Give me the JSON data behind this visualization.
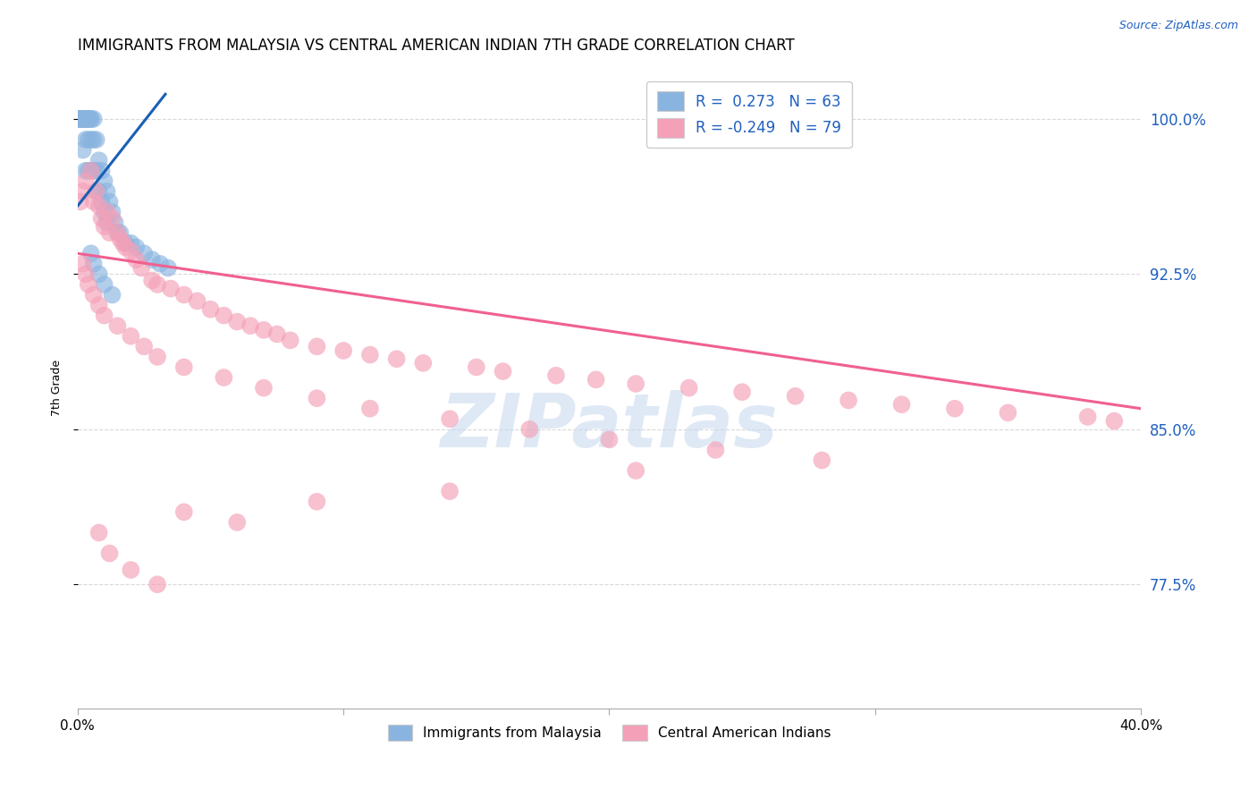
{
  "title": "IMMIGRANTS FROM MALAYSIA VS CENTRAL AMERICAN INDIAN 7TH GRADE CORRELATION CHART",
  "source": "Source: ZipAtlas.com",
  "ylabel": "7th Grade",
  "ytick_labels": [
    "100.0%",
    "92.5%",
    "85.0%",
    "77.5%"
  ],
  "ytick_values": [
    1.0,
    0.925,
    0.85,
    0.775
  ],
  "xlim": [
    0.0,
    0.4
  ],
  "ylim": [
    0.715,
    1.025
  ],
  "color_blue": "#8ab4e0",
  "color_pink": "#f4a0b8",
  "line_blue": "#1a5fb4",
  "line_pink": "#f06090",
  "background_color": "#ffffff",
  "watermark_text": "ZIPatlas",
  "grid_color": "#d8d8d8",
  "ytick_right_color": "#2060c0",
  "title_fontsize": 12,
  "axis_label_fontsize": 9,
  "legend_r1": "R =  0.273   N = 63",
  "legend_r2": "R = -0.249   N = 79",
  "blue_line_x": [
    0.0,
    0.033
  ],
  "blue_line_y": [
    0.958,
    1.012
  ],
  "pink_line_x": [
    0.0,
    0.4
  ],
  "pink_line_y": [
    0.935,
    0.86
  ],
  "blue_x": [
    0.001,
    0.001,
    0.001,
    0.001,
    0.001,
    0.001,
    0.001,
    0.002,
    0.002,
    0.002,
    0.002,
    0.002,
    0.002,
    0.002,
    0.002,
    0.002,
    0.003,
    0.003,
    0.003,
    0.003,
    0.003,
    0.003,
    0.003,
    0.004,
    0.004,
    0.004,
    0.004,
    0.004,
    0.005,
    0.005,
    0.005,
    0.005,
    0.006,
    0.006,
    0.006,
    0.007,
    0.007,
    0.007,
    0.008,
    0.008,
    0.009,
    0.009,
    0.01,
    0.01,
    0.011,
    0.011,
    0.012,
    0.013,
    0.014,
    0.015,
    0.016,
    0.018,
    0.02,
    0.022,
    0.025,
    0.028,
    0.031,
    0.034,
    0.005,
    0.006,
    0.008,
    0.01,
    0.013
  ],
  "blue_y": [
    1.0,
    1.0,
    1.0,
    1.0,
    1.0,
    1.0,
    1.0,
    1.0,
    1.0,
    1.0,
    1.0,
    1.0,
    1.0,
    1.0,
    1.0,
    0.985,
    1.0,
    1.0,
    1.0,
    1.0,
    1.0,
    0.99,
    0.975,
    1.0,
    1.0,
    1.0,
    0.99,
    0.975,
    1.0,
    1.0,
    0.99,
    0.975,
    1.0,
    0.99,
    0.975,
    0.99,
    0.975,
    0.965,
    0.98,
    0.965,
    0.975,
    0.96,
    0.97,
    0.955,
    0.965,
    0.95,
    0.96,
    0.955,
    0.95,
    0.945,
    0.945,
    0.94,
    0.94,
    0.938,
    0.935,
    0.932,
    0.93,
    0.928,
    0.935,
    0.93,
    0.925,
    0.92,
    0.915
  ],
  "pink_x": [
    0.001,
    0.002,
    0.003,
    0.005,
    0.006,
    0.007,
    0.008,
    0.009,
    0.01,
    0.011,
    0.012,
    0.013,
    0.015,
    0.016,
    0.017,
    0.018,
    0.02,
    0.022,
    0.024,
    0.028,
    0.03,
    0.035,
    0.04,
    0.045,
    0.05,
    0.055,
    0.06,
    0.065,
    0.07,
    0.075,
    0.08,
    0.09,
    0.1,
    0.11,
    0.12,
    0.13,
    0.15,
    0.16,
    0.18,
    0.195,
    0.21,
    0.23,
    0.25,
    0.27,
    0.29,
    0.31,
    0.33,
    0.35,
    0.38,
    0.39,
    0.002,
    0.003,
    0.004,
    0.006,
    0.008,
    0.01,
    0.015,
    0.02,
    0.025,
    0.03,
    0.04,
    0.055,
    0.07,
    0.09,
    0.11,
    0.14,
    0.17,
    0.2,
    0.24,
    0.28,
    0.008,
    0.012,
    0.02,
    0.03,
    0.04,
    0.06,
    0.09,
    0.14,
    0.21
  ],
  "pink_y": [
    0.96,
    0.965,
    0.97,
    0.975,
    0.96,
    0.965,
    0.958,
    0.952,
    0.948,
    0.955,
    0.945,
    0.952,
    0.945,
    0.942,
    0.94,
    0.938,
    0.936,
    0.932,
    0.928,
    0.922,
    0.92,
    0.918,
    0.915,
    0.912,
    0.908,
    0.905,
    0.902,
    0.9,
    0.898,
    0.896,
    0.893,
    0.89,
    0.888,
    0.886,
    0.884,
    0.882,
    0.88,
    0.878,
    0.876,
    0.874,
    0.872,
    0.87,
    0.868,
    0.866,
    0.864,
    0.862,
    0.86,
    0.858,
    0.856,
    0.854,
    0.93,
    0.925,
    0.92,
    0.915,
    0.91,
    0.905,
    0.9,
    0.895,
    0.89,
    0.885,
    0.88,
    0.875,
    0.87,
    0.865,
    0.86,
    0.855,
    0.85,
    0.845,
    0.84,
    0.835,
    0.8,
    0.79,
    0.782,
    0.775,
    0.81,
    0.805,
    0.815,
    0.82,
    0.83
  ]
}
